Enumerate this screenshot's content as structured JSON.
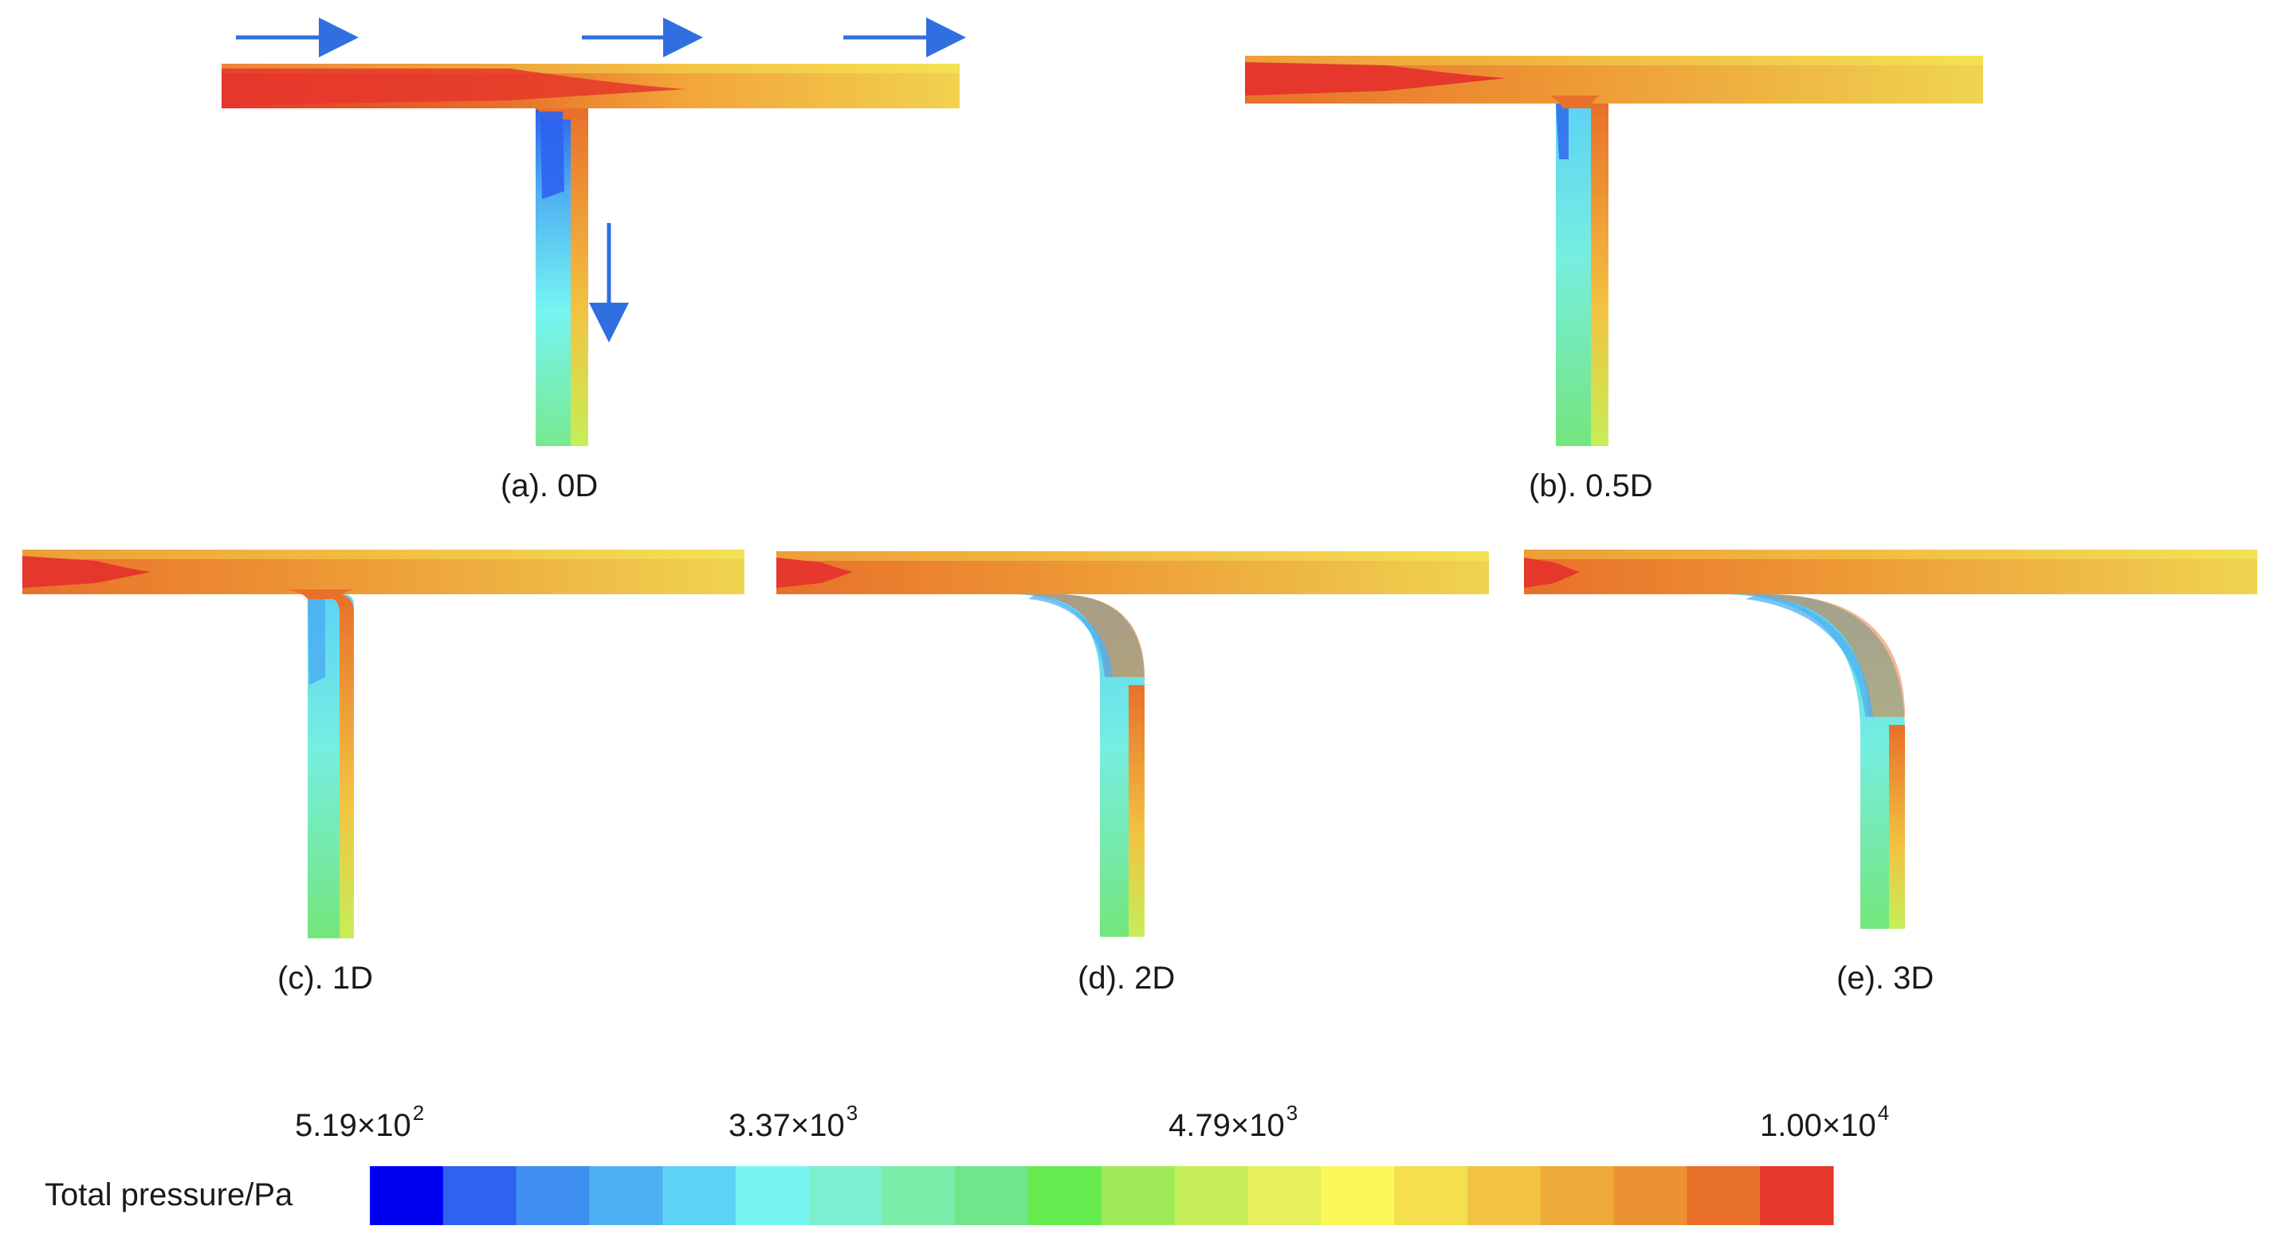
{
  "panels": [
    {
      "id": "a",
      "label": "(a). 0D",
      "bend": 0
    },
    {
      "id": "b",
      "label": "(b). 0.5D",
      "bend": 0.5
    },
    {
      "id": "c",
      "label": "(c). 1D",
      "bend": 1
    },
    {
      "id": "d",
      "label": "(d). 2D",
      "bend": 2
    },
    {
      "id": "e",
      "label": "(e). 3D",
      "bend": 3
    }
  ],
  "legend": {
    "title": "Total pressure/Pa",
    "ticks": [
      {
        "mantissa": "5.19×10",
        "exp": "2"
      },
      {
        "mantissa": "3.37×10",
        "exp": "3"
      },
      {
        "mantissa": "4.79×10",
        "exp": "3"
      },
      {
        "mantissa": "1.00×10",
        "exp": "4"
      }
    ],
    "colors": [
      "#0000f0",
      "#2d63ee",
      "#3f8ff0",
      "#4eb0f2",
      "#5dd3f5",
      "#76f5f2",
      "#7deed0",
      "#79eca9",
      "#6fe68a",
      "#66ec4f",
      "#9eea58",
      "#c6ee58",
      "#e5f05c",
      "#fbf85a",
      "#f6df4c",
      "#f2c342",
      "#eeab3a",
      "#ed9232",
      "#e8702a",
      "#e5372b"
    ]
  },
  "flow_arrows_color": "#2f6fe0"
}
